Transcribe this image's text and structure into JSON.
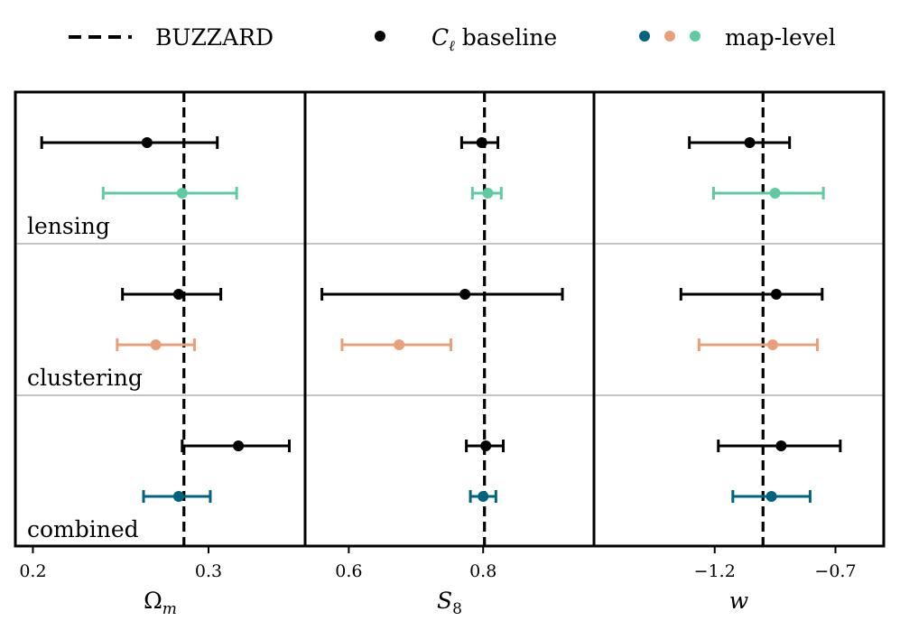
{
  "legend": {
    "buzzard_label": "BUZZARD",
    "cl_label": "C",
    "cl_subscript": "ℓ",
    "cl_suffix": " baseline",
    "map_label": "map-level"
  },
  "colors": {
    "black": "#000000",
    "lensing": "#5ecba1",
    "clustering": "#e8a07a",
    "combined": "#006480",
    "separator": "#888888"
  },
  "chart_data": [
    {
      "type": "scatter",
      "subtype": "errorbar",
      "xlabel": "Ω",
      "xlabel_sub": "m",
      "xlim": [
        0.19,
        0.355
      ],
      "xticks": [
        0.2,
        0.3
      ],
      "xtick_labels": [
        "0.2",
        "0.3"
      ],
      "reference_line": 0.286,
      "rows": [
        "lensing",
        "clustering",
        "combined"
      ],
      "series": [
        {
          "name": "C_ℓ baseline",
          "row": "lensing",
          "value": 0.265,
          "err_low": 0.06,
          "err_high": 0.04
        },
        {
          "name": "map-level",
          "row": "lensing",
          "value": 0.285,
          "err_low": 0.045,
          "err_high": 0.031
        },
        {
          "name": "C_ℓ baseline",
          "row": "clustering",
          "value": 0.283,
          "err_low": 0.032,
          "err_high": 0.024
        },
        {
          "name": "map-level",
          "row": "clustering",
          "value": 0.27,
          "err_low": 0.022,
          "err_high": 0.022
        },
        {
          "name": "C_ℓ baseline",
          "row": "combined",
          "value": 0.317,
          "err_low": 0.032,
          "err_high": 0.029
        },
        {
          "name": "map-level",
          "row": "combined",
          "value": 0.283,
          "err_low": 0.02,
          "err_high": 0.018
        }
      ]
    },
    {
      "type": "scatter",
      "subtype": "errorbar",
      "xlabel": "S",
      "xlabel_sub": "8",
      "xlim": [
        0.535,
        0.965
      ],
      "xticks": [
        0.6,
        0.8
      ],
      "xtick_labels": [
        "0.6",
        "0.8"
      ],
      "reference_line": 0.802,
      "rows": [
        "lensing",
        "clustering",
        "combined"
      ],
      "series": [
        {
          "name": "C_ℓ baseline",
          "row": "lensing",
          "value": 0.798,
          "err_low": 0.03,
          "err_high": 0.024
        },
        {
          "name": "map-level",
          "row": "lensing",
          "value": 0.807,
          "err_low": 0.023,
          "err_high": 0.02
        },
        {
          "name": "C_ℓ baseline",
          "row": "clustering",
          "value": 0.773,
          "err_low": 0.213,
          "err_high": 0.145
        },
        {
          "name": "map-level",
          "row": "clustering",
          "value": 0.675,
          "err_low": 0.085,
          "err_high": 0.077
        },
        {
          "name": "C_ℓ baseline",
          "row": "combined",
          "value": 0.804,
          "err_low": 0.029,
          "err_high": 0.026
        },
        {
          "name": "map-level",
          "row": "combined",
          "value": 0.8,
          "err_low": 0.019,
          "err_high": 0.019
        }
      ]
    },
    {
      "type": "scatter",
      "subtype": "errorbar",
      "xlabel": "w",
      "xlim": [
        -1.7,
        -0.5
      ],
      "xticks": [
        -1.2,
        -0.7
      ],
      "xtick_labels": [
        "−1.2",
        "−0.7"
      ],
      "reference_line": -1.0,
      "rows": [
        "lensing",
        "clustering",
        "combined"
      ],
      "series": [
        {
          "name": "C_ℓ baseline",
          "row": "lensing",
          "value": -1.055,
          "err_low": 0.25,
          "err_high": 0.165
        },
        {
          "name": "map-level",
          "row": "lensing",
          "value": -0.95,
          "err_low": 0.255,
          "err_high": 0.2
        },
        {
          "name": "C_ℓ baseline",
          "row": "clustering",
          "value": -0.945,
          "err_low": 0.395,
          "err_high": 0.19
        },
        {
          "name": "map-level",
          "row": "clustering",
          "value": -0.96,
          "err_low": 0.305,
          "err_high": 0.185
        },
        {
          "name": "C_ℓ baseline",
          "row": "combined",
          "value": -0.925,
          "err_low": 0.26,
          "err_high": 0.245
        },
        {
          "name": "map-level",
          "row": "combined",
          "value": -0.965,
          "err_low": 0.16,
          "err_high": 0.16
        }
      ]
    }
  ],
  "row_labels": [
    "lensing",
    "clustering",
    "combined"
  ]
}
